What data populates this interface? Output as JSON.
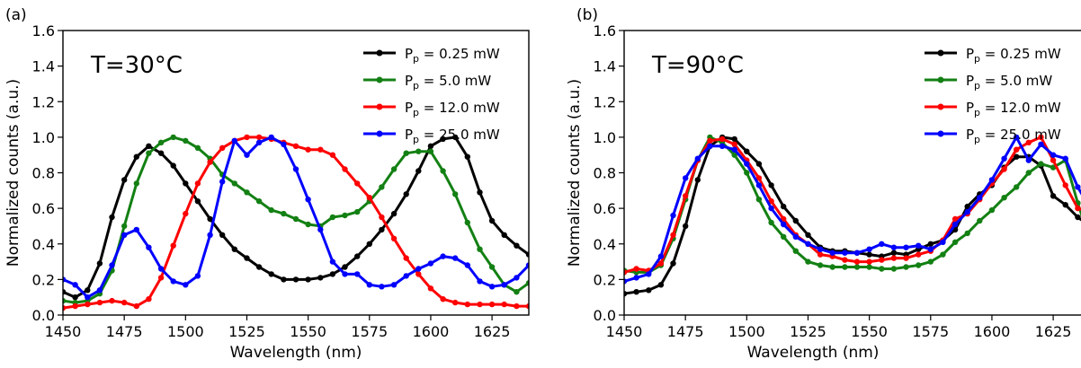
{
  "chart_data": [
    {
      "type": "line",
      "panel_label": "(a)",
      "annotation": "T=30°C",
      "xlabel": "Wavelength (nm)",
      "ylabel": "Normalized counts (a.u.)",
      "xlim": [
        1450,
        1640
      ],
      "ylim": [
        0,
        1.6
      ],
      "xticks": [
        1450,
        1475,
        1500,
        1525,
        1550,
        1575,
        1600,
        1625
      ],
      "yticks": [
        0.0,
        0.2,
        0.4,
        0.6,
        0.8,
        1.0,
        1.2,
        1.4,
        1.6
      ],
      "legend_position": "top-right",
      "x": [
        1450,
        1455,
        1460,
        1465,
        1470,
        1475,
        1480,
        1485,
        1490,
        1495,
        1500,
        1505,
        1510,
        1515,
        1520,
        1525,
        1530,
        1535,
        1540,
        1545,
        1550,
        1555,
        1560,
        1565,
        1570,
        1575,
        1580,
        1585,
        1590,
        1595,
        1600,
        1605,
        1610,
        1615,
        1620,
        1625,
        1630,
        1635,
        1640
      ],
      "series": [
        {
          "name": "P_p = 0.25 mW",
          "color": "#000000",
          "values": [
            0.13,
            0.1,
            0.14,
            0.29,
            0.55,
            0.76,
            0.89,
            0.95,
            0.91,
            0.84,
            0.74,
            0.64,
            0.54,
            0.45,
            0.37,
            0.32,
            0.27,
            0.23,
            0.2,
            0.2,
            0.2,
            0.21,
            0.23,
            0.27,
            0.33,
            0.4,
            0.48,
            0.57,
            0.68,
            0.81,
            0.95,
            0.99,
            1.0,
            0.89,
            0.69,
            0.53,
            0.45,
            0.39,
            0.34
          ]
        },
        {
          "name": "P_p = 5.0 mW",
          "color": "#138013",
          "values": [
            0.08,
            0.07,
            0.08,
            0.12,
            0.25,
            0.5,
            0.74,
            0.91,
            0.97,
            1.0,
            0.98,
            0.94,
            0.88,
            0.79,
            0.74,
            0.69,
            0.64,
            0.59,
            0.57,
            0.54,
            0.51,
            0.5,
            0.55,
            0.56,
            0.58,
            0.64,
            0.72,
            0.82,
            0.91,
            0.92,
            0.92,
            0.81,
            0.68,
            0.52,
            0.37,
            0.27,
            0.17,
            0.13,
            0.18
          ]
        },
        {
          "name": "P_p = 12.0 mW",
          "color": "#ff0000",
          "values": [
            0.04,
            0.05,
            0.06,
            0.07,
            0.08,
            0.07,
            0.05,
            0.09,
            0.21,
            0.39,
            0.57,
            0.74,
            0.86,
            0.94,
            0.98,
            1.0,
            1.0,
            0.99,
            0.97,
            0.95,
            0.93,
            0.93,
            0.9,
            0.82,
            0.74,
            0.66,
            0.55,
            0.43,
            0.32,
            0.23,
            0.15,
            0.09,
            0.07,
            0.06,
            0.06,
            0.06,
            0.06,
            0.05,
            0.05
          ]
        },
        {
          "name": "P_p = 25.0 mW",
          "color": "#0000ff",
          "values": [
            0.2,
            0.17,
            0.1,
            0.14,
            0.28,
            0.45,
            0.48,
            0.38,
            0.26,
            0.19,
            0.17,
            0.22,
            0.45,
            0.75,
            0.98,
            0.9,
            0.97,
            1.0,
            0.96,
            0.82,
            0.65,
            0.48,
            0.3,
            0.23,
            0.23,
            0.17,
            0.16,
            0.17,
            0.22,
            0.26,
            0.29,
            0.33,
            0.32,
            0.28,
            0.19,
            0.16,
            0.17,
            0.21,
            0.28
          ]
        }
      ]
    },
    {
      "type": "line",
      "panel_label": "(b)",
      "annotation": "T=90°C",
      "xlabel": "Wavelength (nm)",
      "ylabel": "Normalized counts (a.u.)",
      "xlim": [
        1450,
        1640
      ],
      "ylim": [
        0,
        1.6
      ],
      "xticks": [
        1450,
        1475,
        1500,
        1525,
        1550,
        1575,
        1600,
        1625
      ],
      "yticks": [
        0.0,
        0.2,
        0.4,
        0.6,
        0.8,
        1.0,
        1.2,
        1.4,
        1.6
      ],
      "legend_position": "top-right",
      "x": [
        1450,
        1455,
        1460,
        1465,
        1470,
        1475,
        1480,
        1485,
        1490,
        1495,
        1500,
        1505,
        1510,
        1515,
        1520,
        1525,
        1530,
        1535,
        1540,
        1545,
        1550,
        1555,
        1560,
        1565,
        1570,
        1575,
        1580,
        1585,
        1590,
        1595,
        1600,
        1605,
        1610,
        1615,
        1620,
        1625,
        1630,
        1635,
        1640
      ],
      "series": [
        {
          "name": "P_p = 0.25 mW",
          "color": "#000000",
          "values": [
            0.12,
            0.13,
            0.14,
            0.17,
            0.29,
            0.5,
            0.76,
            0.95,
            1.0,
            0.99,
            0.92,
            0.85,
            0.73,
            0.61,
            0.53,
            0.45,
            0.38,
            0.36,
            0.36,
            0.35,
            0.34,
            0.33,
            0.35,
            0.34,
            0.37,
            0.4,
            0.42,
            0.48,
            0.61,
            0.68,
            0.73,
            0.83,
            0.89,
            0.89,
            0.84,
            0.67,
            0.62,
            0.55,
            0.5
          ]
        },
        {
          "name": "P_p = 5.0 mW",
          "color": "#138013",
          "values": [
            0.25,
            0.24,
            0.24,
            0.28,
            0.43,
            0.65,
            0.87,
            1.0,
            0.97,
            0.9,
            0.8,
            0.65,
            0.52,
            0.44,
            0.36,
            0.3,
            0.28,
            0.27,
            0.27,
            0.27,
            0.27,
            0.26,
            0.26,
            0.27,
            0.28,
            0.3,
            0.34,
            0.41,
            0.46,
            0.53,
            0.59,
            0.66,
            0.72,
            0.8,
            0.85,
            0.83,
            0.87,
            0.63,
            0.42
          ]
        },
        {
          "name": "P_p = 12.0 mW",
          "color": "#ff0000",
          "values": [
            0.24,
            0.26,
            0.25,
            0.29,
            0.45,
            0.67,
            0.87,
            0.98,
            0.99,
            0.96,
            0.87,
            0.77,
            0.64,
            0.54,
            0.45,
            0.4,
            0.34,
            0.33,
            0.31,
            0.3,
            0.3,
            0.31,
            0.32,
            0.32,
            0.34,
            0.36,
            0.42,
            0.54,
            0.57,
            0.65,
            0.74,
            0.82,
            0.93,
            0.97,
            1.0,
            0.87,
            0.73,
            0.6,
            0.58
          ]
        },
        {
          "name": "P_p = 25.0 mW",
          "color": "#0000ff",
          "values": [
            0.19,
            0.21,
            0.23,
            0.33,
            0.56,
            0.77,
            0.88,
            0.95,
            0.95,
            0.93,
            0.85,
            0.73,
            0.6,
            0.51,
            0.44,
            0.4,
            0.37,
            0.35,
            0.35,
            0.35,
            0.37,
            0.4,
            0.38,
            0.38,
            0.39,
            0.37,
            0.41,
            0.51,
            0.58,
            0.66,
            0.76,
            0.88,
            1.0,
            0.87,
            0.96,
            0.9,
            0.88,
            0.72,
            0.6
          ]
        }
      ]
    }
  ]
}
